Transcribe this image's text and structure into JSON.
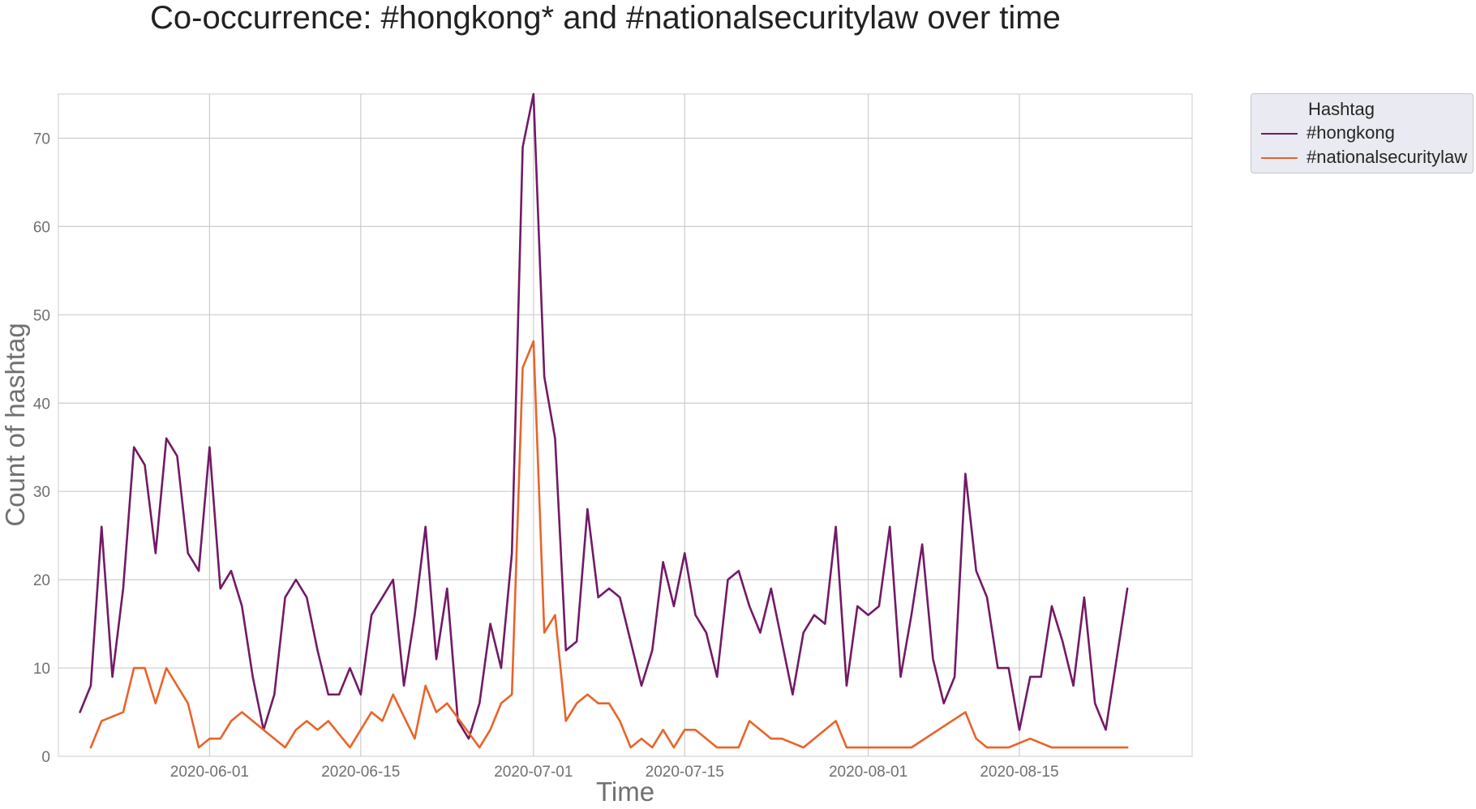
{
  "chart_data": {
    "type": "line",
    "title": "Co-occurrence: #hongkong* and #nationalsecuritylaw over time",
    "xlabel": "Time",
    "ylabel": "Count of hashtag",
    "x_start": "2020-05-20",
    "xlim": [
      "2020-05-18",
      "2020-08-31"
    ],
    "ylim": [
      0,
      75
    ],
    "yticks": [
      0,
      10,
      20,
      30,
      40,
      50,
      60,
      70
    ],
    "xticks": [
      "2020-06-01",
      "2020-06-15",
      "2020-07-01",
      "2020-07-15",
      "2020-08-01",
      "2020-08-15"
    ],
    "grid": true,
    "legend": {
      "title": "Hashtag",
      "placement": "outside top-right"
    },
    "series": [
      {
        "name": "#hongkong",
        "color": "#721a66",
        "values": [
          5,
          8,
          26,
          9,
          19,
          35,
          33,
          23,
          36,
          34,
          23,
          21,
          35,
          19,
          21,
          17,
          9,
          3,
          7,
          18,
          20,
          18,
          12,
          7,
          7,
          10,
          7,
          16,
          18,
          20,
          8,
          16,
          26,
          11,
          19,
          4,
          2,
          6,
          15,
          10,
          23,
          69,
          75,
          43,
          36,
          12,
          13,
          28,
          18,
          19,
          18,
          13,
          8,
          12,
          22,
          17,
          23,
          16,
          14,
          9,
          20,
          21,
          17,
          14,
          19,
          13,
          7,
          14,
          16,
          15,
          26,
          8,
          17,
          16,
          17,
          26,
          9,
          16,
          24,
          11,
          6,
          9,
          32,
          21,
          18,
          10,
          10,
          3,
          9,
          9,
          17,
          13,
          8,
          18,
          6,
          3,
          11,
          19
        ]
      },
      {
        "name": "#nationalsecuritylaw",
        "color": "#e8642a",
        "values": [
          null,
          1,
          4,
          null,
          5,
          10,
          10,
          6,
          10,
          null,
          6,
          1,
          2,
          2,
          4,
          5,
          null,
          3,
          null,
          1,
          3,
          4,
          3,
          4,
          null,
          1,
          null,
          5,
          4,
          7,
          null,
          2,
          8,
          5,
          6,
          null,
          null,
          1,
          3,
          6,
          7,
          44,
          47,
          14,
          16,
          4,
          6,
          7,
          6,
          6,
          4,
          1,
          2,
          1,
          3,
          1,
          3,
          3,
          null,
          1,
          1,
          1,
          4,
          null,
          2,
          2,
          null,
          1,
          null,
          null,
          4,
          1,
          1,
          1,
          1,
          1,
          1,
          1,
          null,
          null,
          null,
          null,
          5,
          2,
          1,
          1,
          1,
          null,
          2,
          null,
          1,
          1,
          1,
          1,
          1,
          1,
          1,
          1
        ]
      }
    ]
  }
}
